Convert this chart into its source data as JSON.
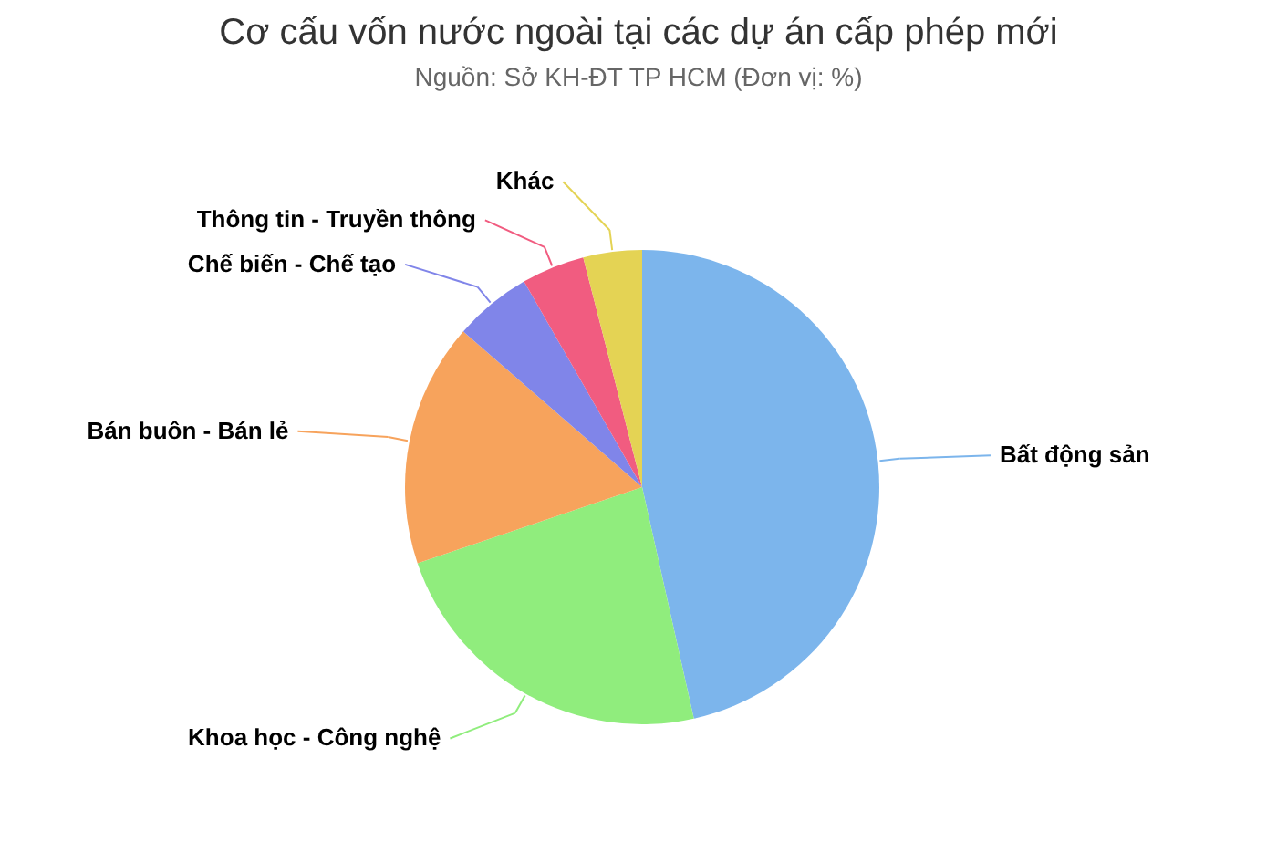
{
  "chart_data": {
    "type": "pie",
    "title": "Cơ cấu vốn nước ngoài tại các dự án cấp phép mới",
    "subtitle": "Nguồn: Sở KH-ĐT TP HCM (Đơn vị: %)",
    "categories": [
      "Bất động sản",
      "Khoa học - Công nghệ",
      "Bán buôn - Bán lẻ",
      "Chế biến - Chế tạo",
      "Thông tin - Truyền thông",
      "Khác"
    ],
    "values": [
      46.5,
      23.3,
      16.6,
      5.3,
      4.3,
      4.0
    ],
    "colors": [
      "#7cb5ec",
      "#90ed7d",
      "#f7a35c",
      "#8085e9",
      "#f15c80",
      "#e4d354"
    ]
  }
}
